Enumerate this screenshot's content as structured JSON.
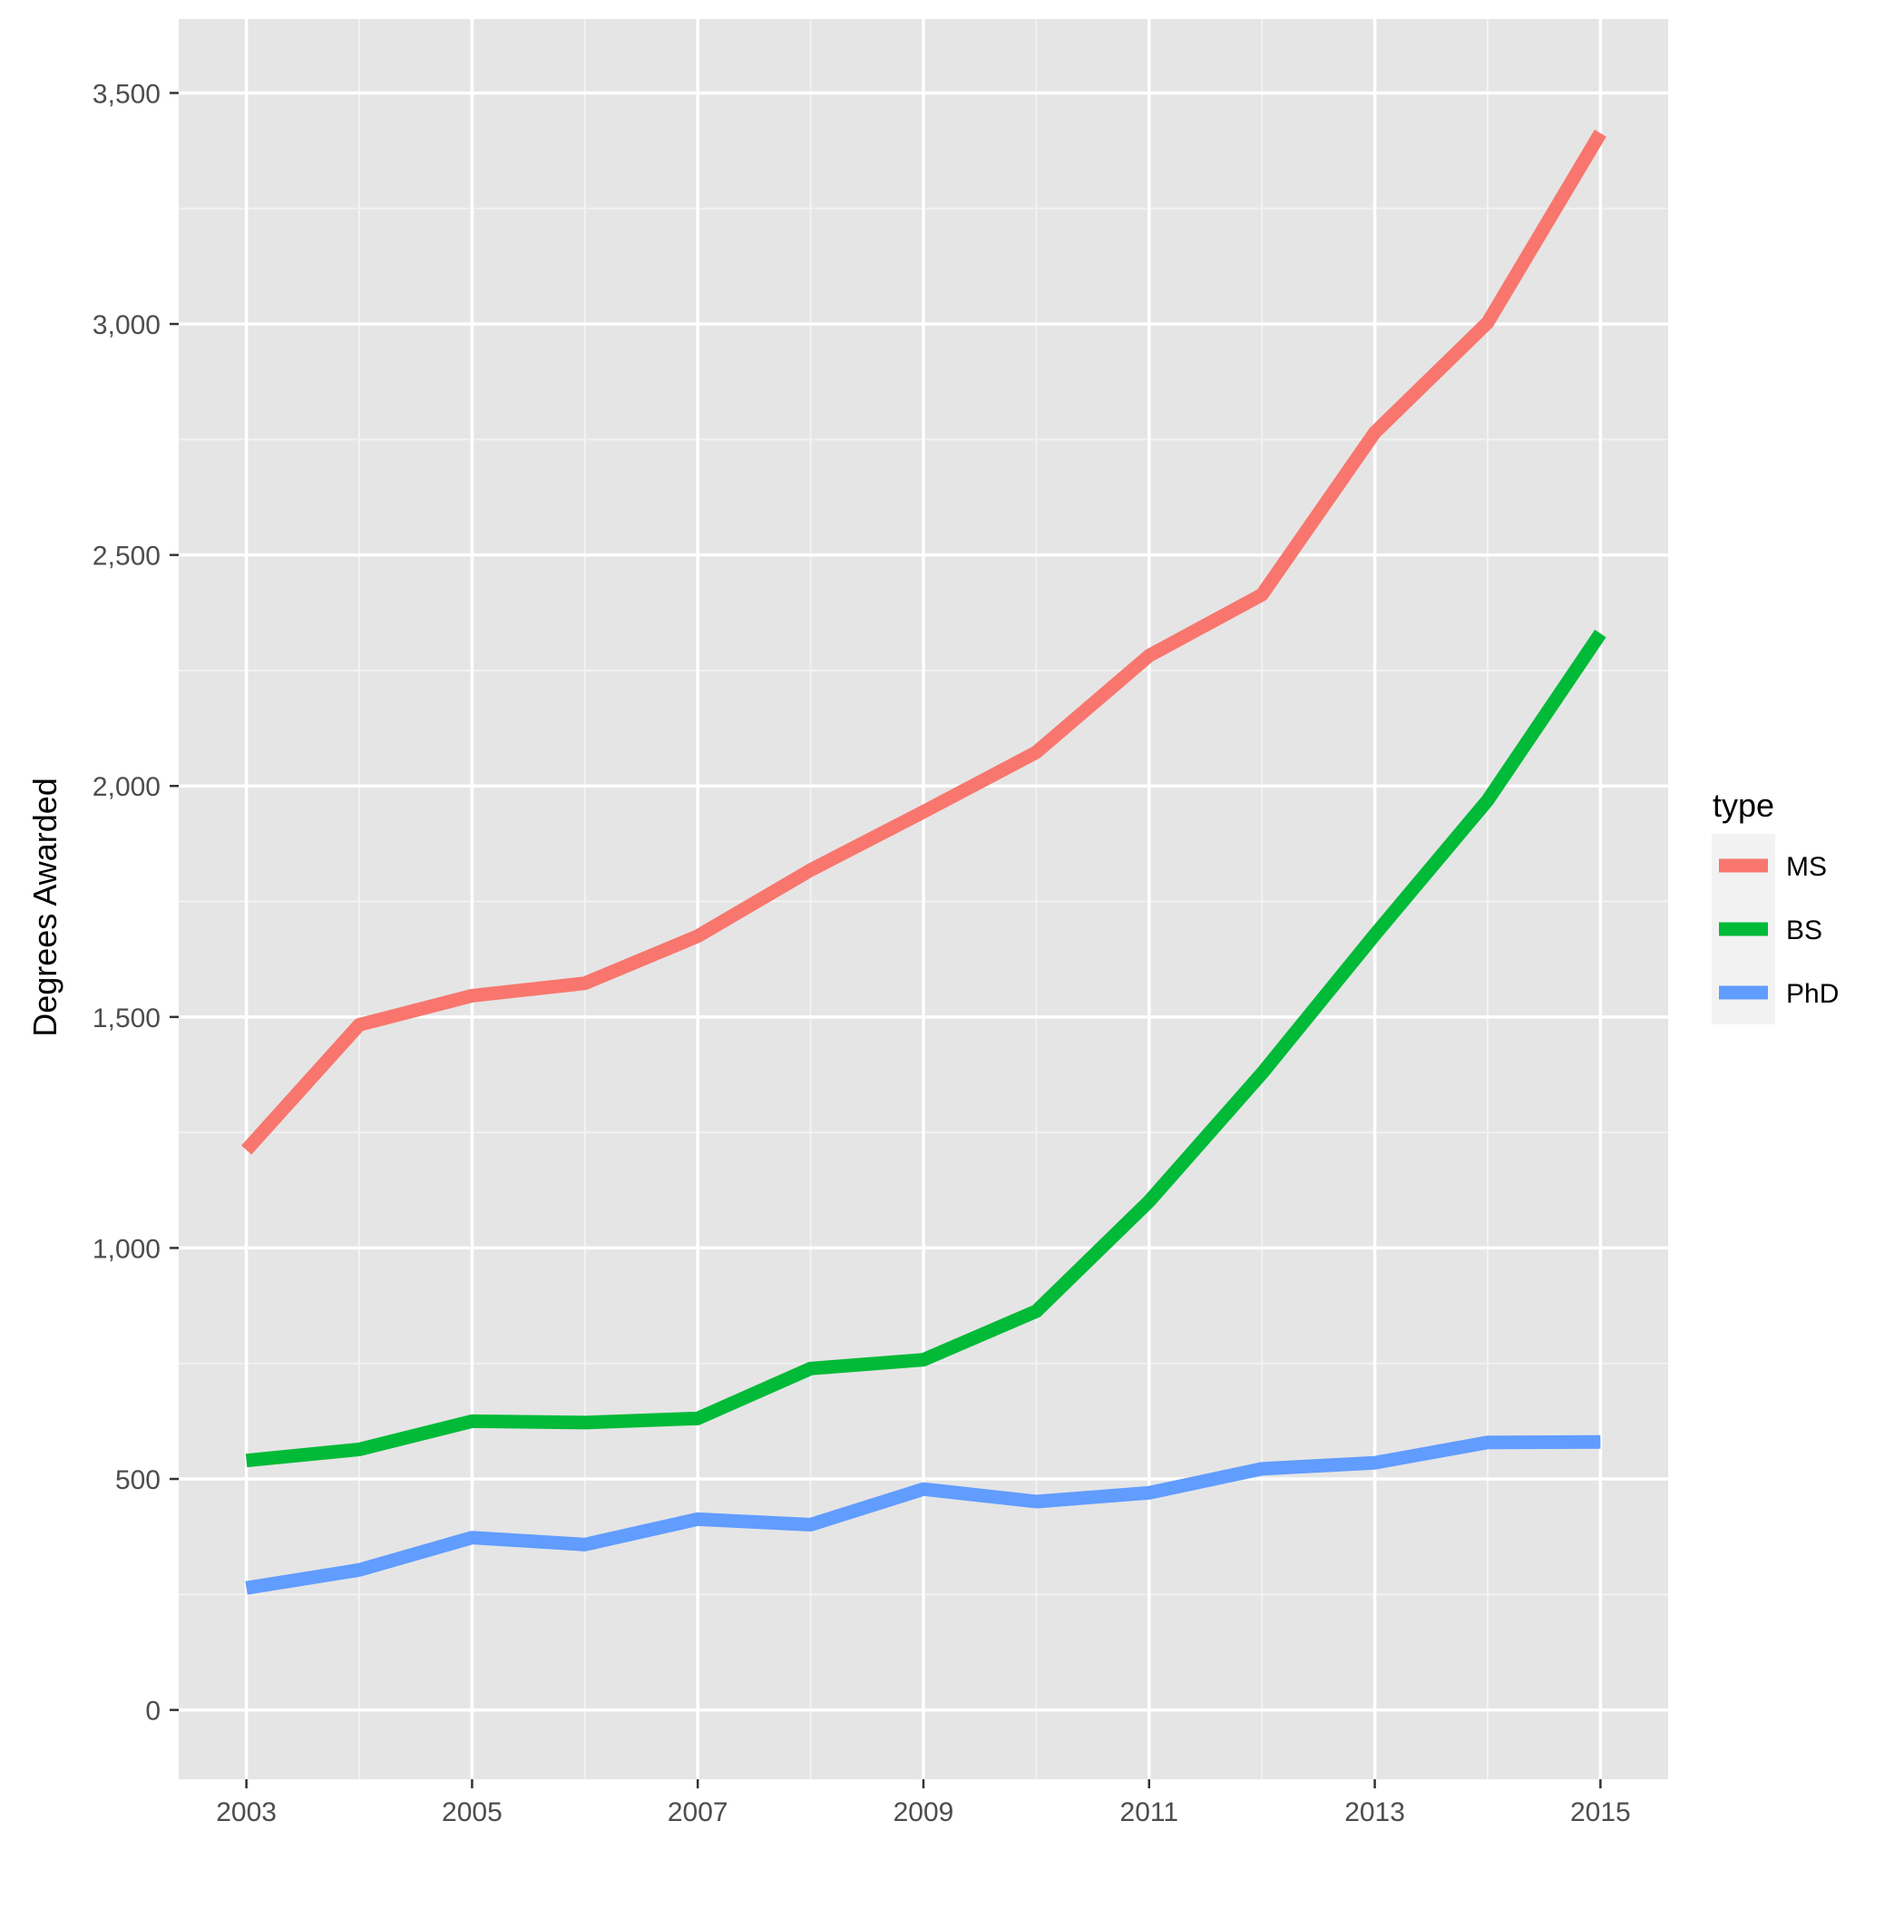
{
  "chart_data": {
    "type": "line",
    "title": "",
    "xlabel": "",
    "ylabel": "Degrees Awarded",
    "x": [
      2003,
      2004,
      2005,
      2006,
      2007,
      2008,
      2009,
      2010,
      2011,
      2012,
      2013,
      2014,
      2015
    ],
    "xlim": [
      2002.4,
      2015.6
    ],
    "ylim": [
      -150,
      3660
    ],
    "x_ticks": [
      2003,
      2005,
      2007,
      2009,
      2011,
      2013,
      2015
    ],
    "x_tick_labels": [
      "2003",
      "2005",
      "2007",
      "2009",
      "2011",
      "2013",
      "2015"
    ],
    "y_ticks": [
      0,
      500,
      1000,
      1500,
      2000,
      2500,
      3000,
      3500
    ],
    "y_tick_labels": [
      "0",
      "500",
      "1,000",
      "1,500",
      "2,000",
      "2,500",
      "3,000",
      "3,500"
    ],
    "grid": true,
    "legend": {
      "title": "type",
      "placement": "right"
    },
    "series": [
      {
        "name": "MS",
        "color": "#F8766D",
        "values": [
          1212,
          1483,
          1546,
          1573,
          1675,
          1818,
          1944,
          2073,
          2282,
          2414,
          2765,
          3003,
          3413
        ]
      },
      {
        "name": "BS",
        "color": "#00BA38",
        "values": [
          540,
          564,
          625,
          622,
          631,
          739,
          758,
          863,
          1101,
          1378,
          1678,
          1969,
          2330
        ]
      },
      {
        "name": "PhD",
        "color": "#619CFF",
        "values": [
          264,
          303,
          373,
          358,
          413,
          401,
          478,
          451,
          470,
          522,
          535,
          579,
          580
        ]
      }
    ]
  }
}
